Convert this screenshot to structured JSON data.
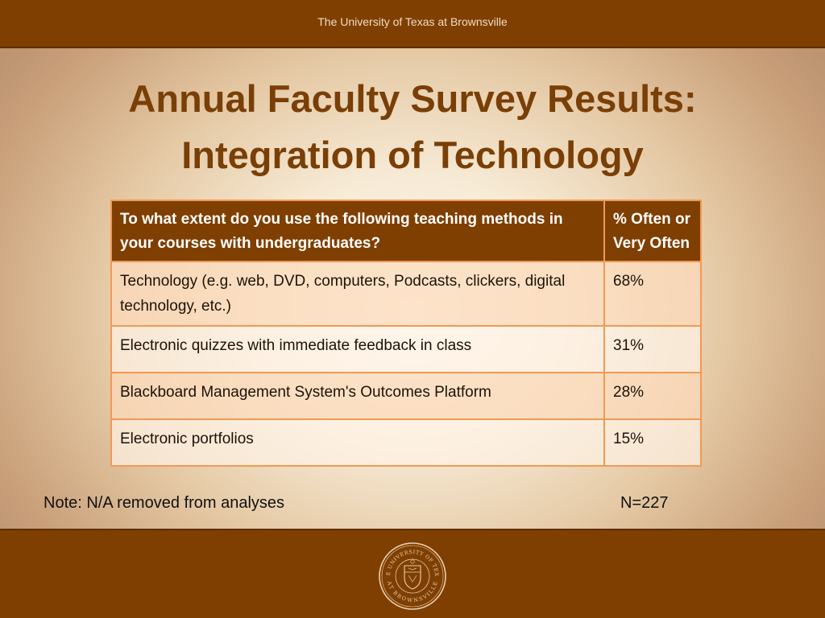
{
  "header": {
    "institution": "The University of Texas at Brownsville"
  },
  "title": {
    "line1": "Annual Faculty Survey Results:",
    "line2": "Integration of Technology"
  },
  "table": {
    "headers": [
      "To what extent do you use the following teaching methods in your courses with undergraduates?",
      "% Often or Very Often"
    ],
    "rows": [
      {
        "method": "Technology (e.g. web, DVD, computers, Podcasts, clickers, digital technology, etc.)",
        "percent": "68%"
      },
      {
        "method": "Electronic quizzes with immediate feedback in class",
        "percent": "31%"
      },
      {
        "method": "Blackboard Management System's Outcomes Platform",
        "percent": "28%"
      },
      {
        "method": "Electronic portfolios",
        "percent": "15%"
      }
    ]
  },
  "footer": {
    "note": "Note: N/A removed from analyses",
    "n": "N=227",
    "seal": {
      "top_text": "THE UNIVERSITY OF TEXAS",
      "bottom_text": "AT BROWNSVILLE"
    }
  },
  "colors": {
    "brand_brown": "#7f3f00",
    "title_brown": "#7a3f06",
    "table_border": "#ef9a55",
    "row_tint": "#fcdaba"
  }
}
